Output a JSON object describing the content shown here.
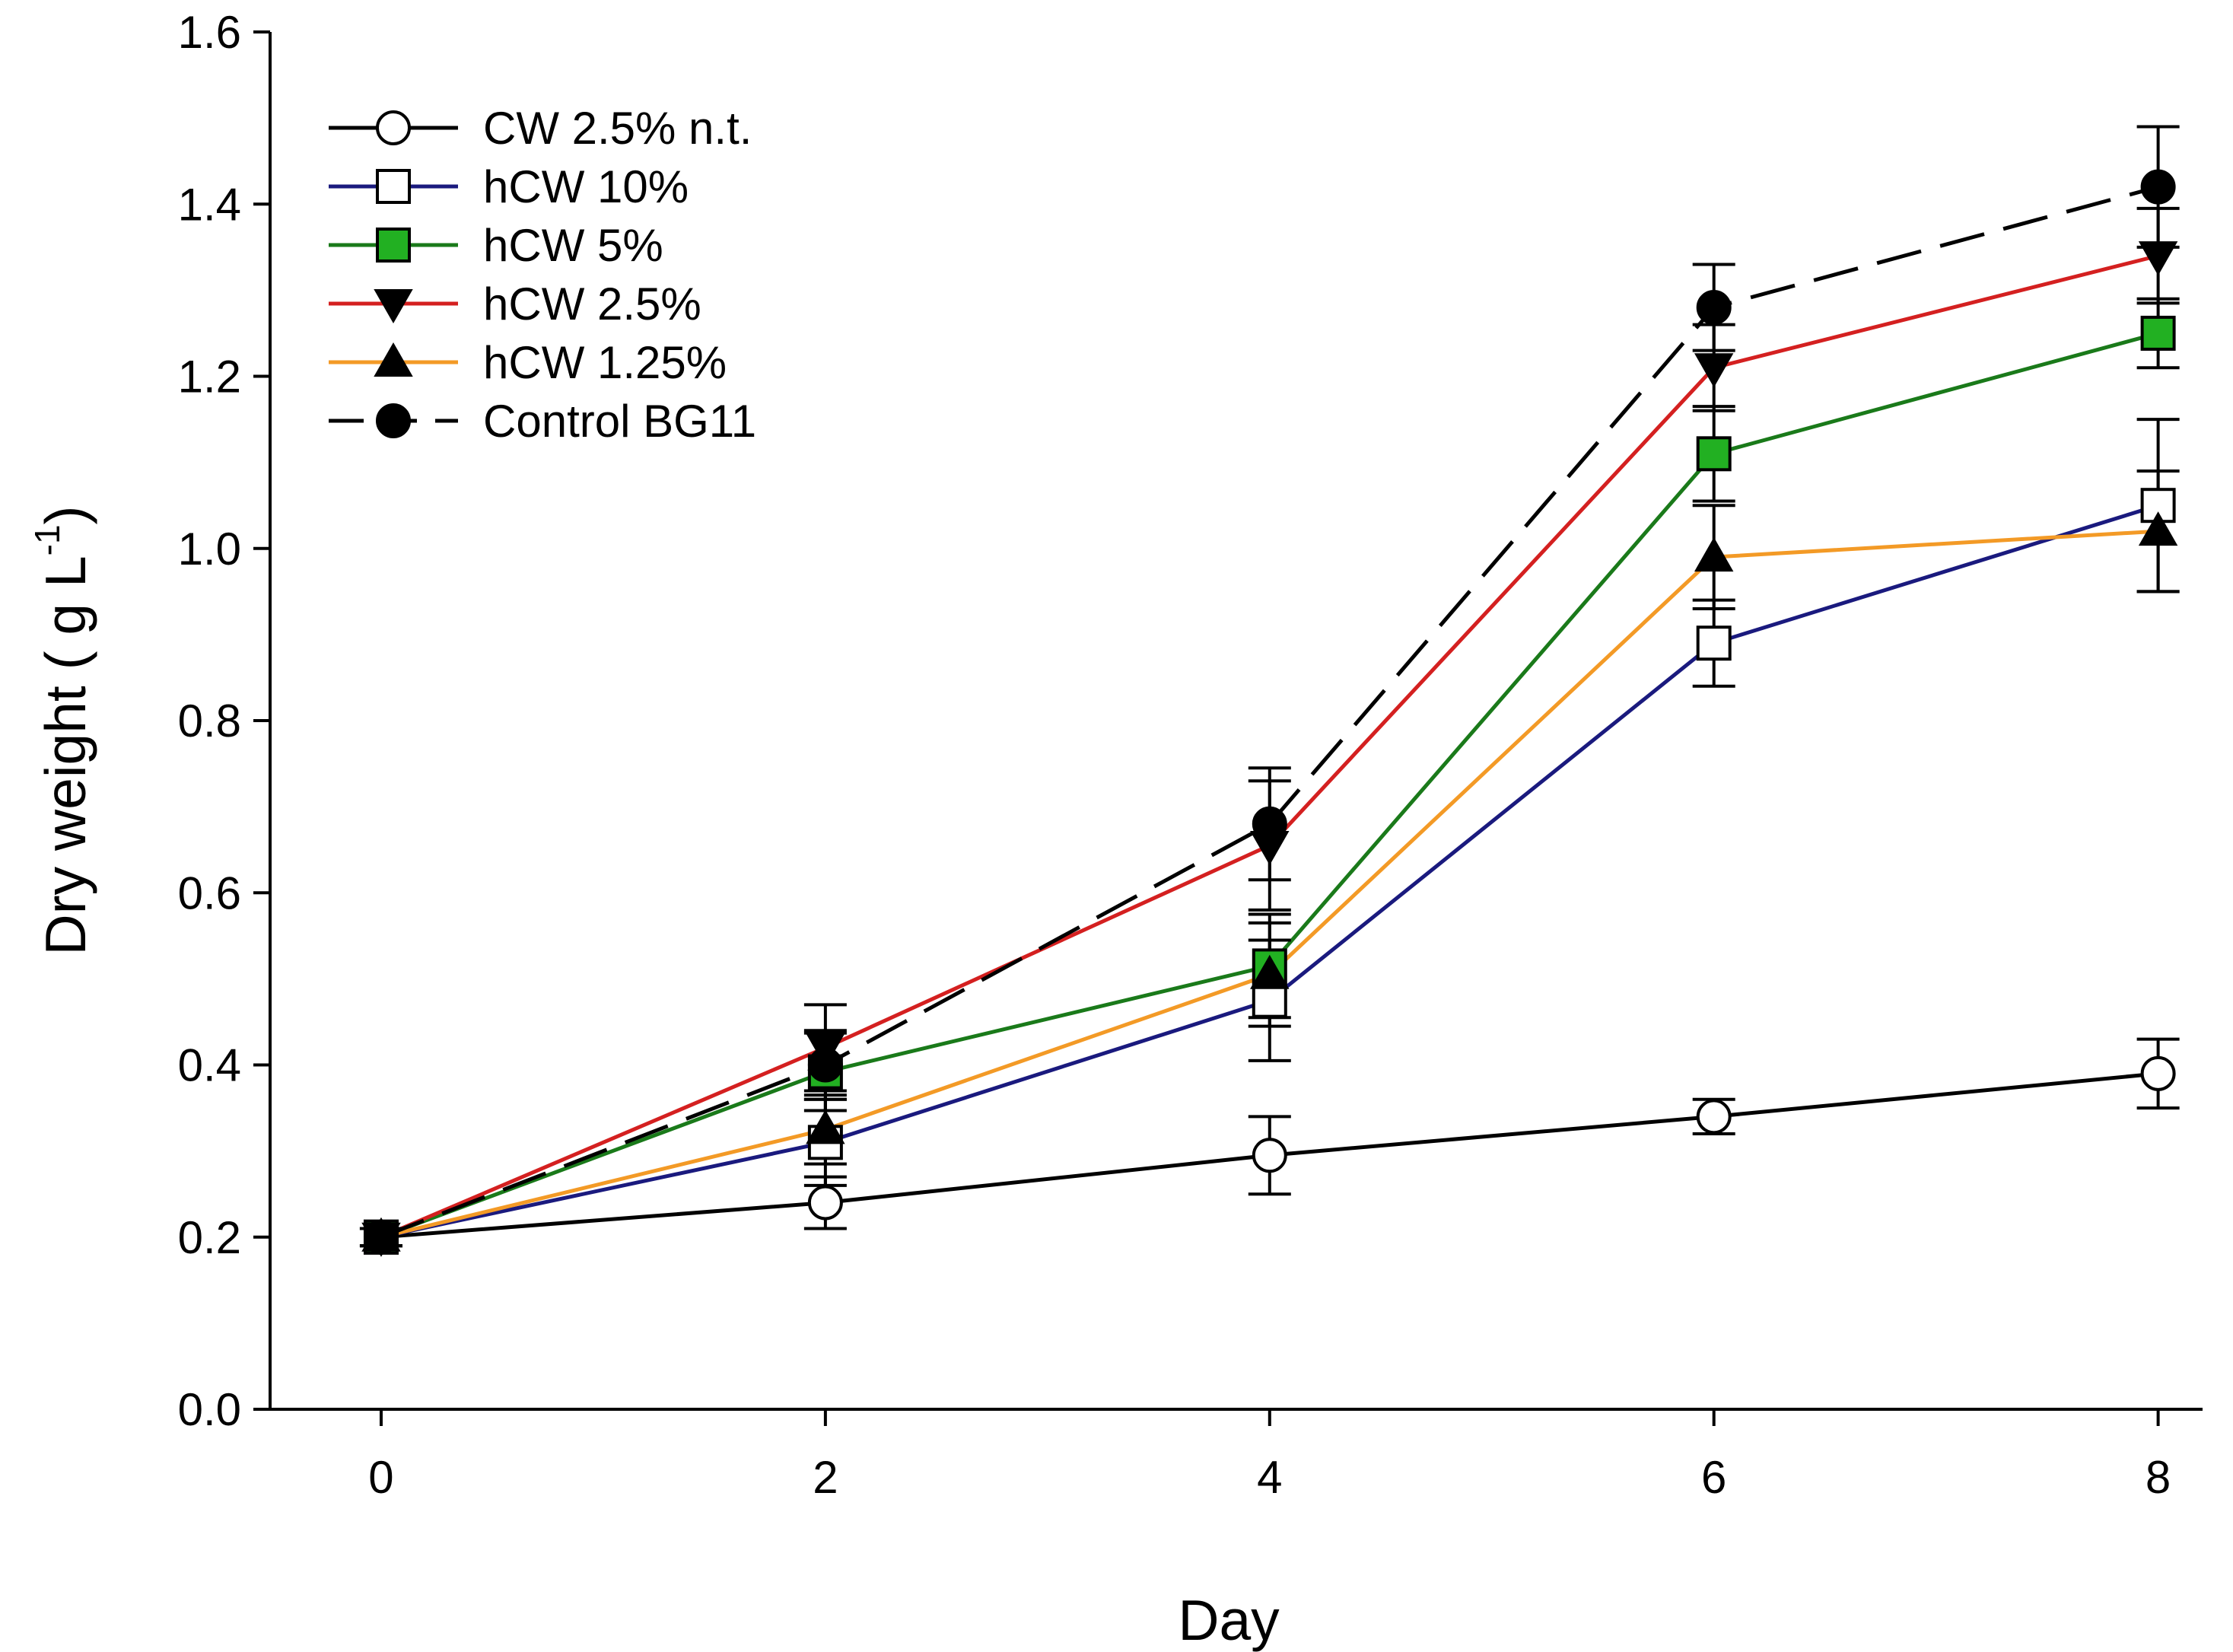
{
  "chart_data": {
    "type": "line",
    "title": "",
    "xlabel": "Day",
    "ylabel": "Dry weight ( g L",
    "ylabel_sup": "-1",
    "ylabel_close": ")",
    "xlim": [
      -0.5,
      8.2
    ],
    "ylim": [
      0,
      1.6
    ],
    "xticks": [
      0,
      2,
      4,
      6,
      8
    ],
    "xtick_labels": [
      "0",
      "2",
      "4",
      "6",
      "8"
    ],
    "yticks": [
      0,
      0.2,
      0.4,
      0.6,
      0.8,
      1.0,
      1.2,
      1.4,
      1.6
    ],
    "ytick_labels": [
      "0.0",
      "0.2",
      "0.4",
      "0.6",
      "0.8",
      "1.0",
      "1.2",
      "1.4",
      "1.6"
    ],
    "x": [
      0,
      2,
      4,
      6,
      8
    ],
    "legend_position": "top-left",
    "series": [
      {
        "name": "CW 2.5% n.t.",
        "color": "#000000",
        "dash": "solid",
        "marker": "circle-open",
        "values": [
          0.2,
          0.24,
          0.295,
          0.34,
          0.39
        ],
        "errors": [
          0.01,
          0.03,
          0.045,
          0.02,
          0.04
        ]
      },
      {
        "name": "hCW 10%",
        "color": "#1a1a7e",
        "dash": "solid",
        "marker": "square-open",
        "values": [
          0.2,
          0.31,
          0.475,
          0.89,
          1.05
        ],
        "errors": [
          0.01,
          0.05,
          0.07,
          0.05,
          0.1
        ]
      },
      {
        "name": "hCW 5%",
        "color": "#1a7a1a",
        "dash": "solid",
        "marker": "square-green",
        "marker_fill": "#22b022",
        "values": [
          0.2,
          0.392,
          0.515,
          1.11,
          1.25
        ],
        "errors": [
          0.01,
          0.045,
          0.06,
          0.055,
          0.04
        ]
      },
      {
        "name": "hCW 2.5%",
        "color": "#d42020",
        "dash": "solid",
        "marker": "triangle-down",
        "values": [
          0.2,
          0.42,
          0.655,
          1.21,
          1.34
        ],
        "errors": [
          0.01,
          0.05,
          0.075,
          0.05,
          0.055
        ]
      },
      {
        "name": "hCW 1.25%",
        "color": "#f39a26",
        "dash": "solid",
        "marker": "triangle-up",
        "values": [
          0.2,
          0.325,
          0.505,
          0.99,
          1.02
        ],
        "errors": [
          0.01,
          0.04,
          0.06,
          0.06,
          0.07
        ]
      },
      {
        "name": "Control BG11",
        "color": "#000000",
        "dash": "dashed",
        "marker": "circle-filled",
        "values": [
          0.2,
          0.4,
          0.68,
          1.28,
          1.42
        ],
        "errors": [
          0.01,
          0.04,
          0.065,
          0.05,
          0.07
        ]
      }
    ]
  }
}
